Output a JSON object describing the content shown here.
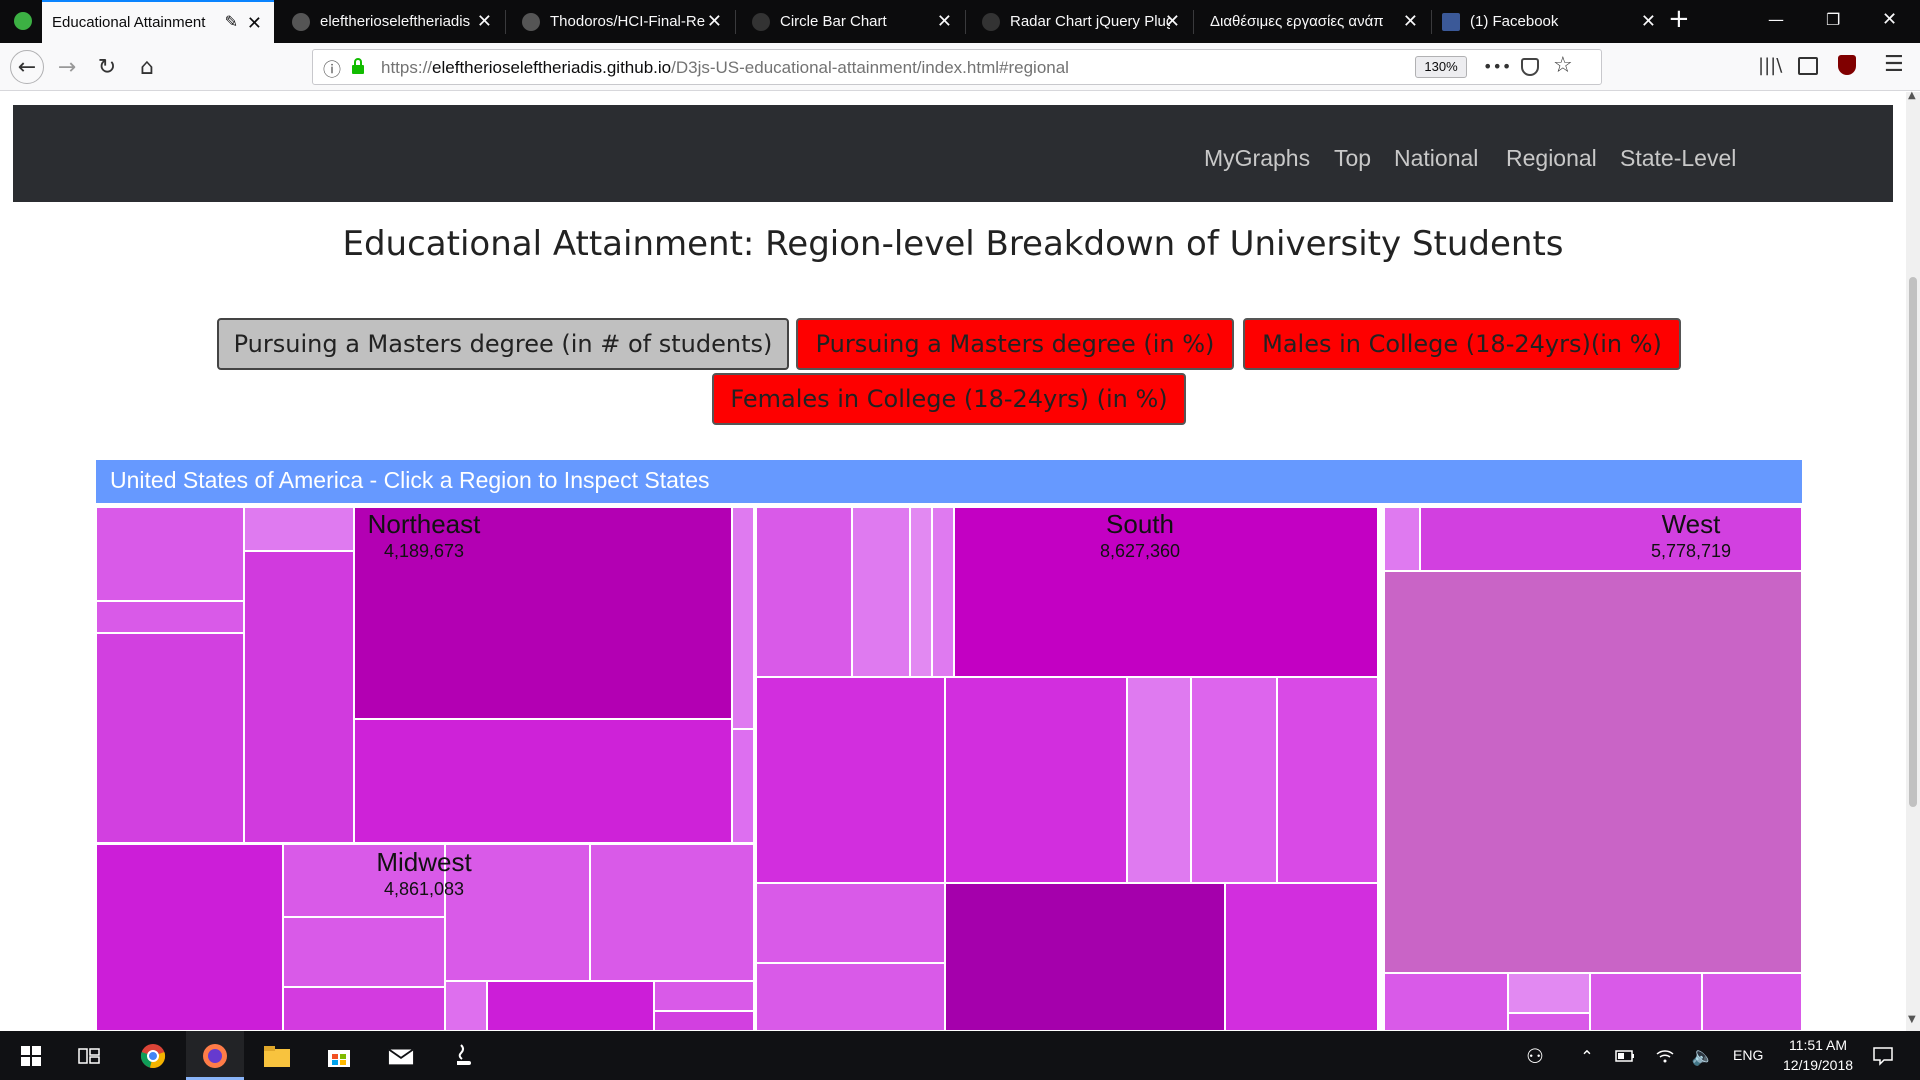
{
  "browser": {
    "tabs": [
      {
        "label": "Educational Attainment",
        "active": true
      },
      {
        "label": "eleftherioseleftheriadis",
        "active": false
      },
      {
        "label": "Thodoros/HCI-Final-Re",
        "active": false
      },
      {
        "label": "Circle Bar Chart",
        "active": false
      },
      {
        "label": "Radar Chart jQuery Plug",
        "active": false
      },
      {
        "label": "Διαθέσιμες εργασίες ανάπ",
        "active": false
      },
      {
        "label": "(1) Facebook",
        "active": false
      }
    ],
    "url_prefix": "https://",
    "url_host": "eleftherioseleftheriadis.github.io",
    "url_path": "/D3js-US-educational-attainment/index.html#regional",
    "zoom": "130%",
    "new_tab_glyph": "+",
    "close_glyph": "✕",
    "back_glyph": "←",
    "forward_glyph": "→",
    "reload_glyph": "↻",
    "home_glyph": "⌂",
    "info_glyph": "ⓘ",
    "more_glyph": "•••",
    "star_glyph": "☆",
    "minimize_glyph": "—",
    "restore_glyph": "❐",
    "window_close_glyph": "✕",
    "menu_glyph": "☰"
  },
  "site_nav": {
    "links": [
      "MyGraphs",
      "Top",
      "National",
      "Regional",
      "State-Level"
    ]
  },
  "page": {
    "title": "Educational Attainment: Region-level Breakdown of University Students",
    "buttons": [
      "Pursuing a Masters degree (in # of students)",
      "Pursuing a Masters degree (in %)",
      "Males in College (18-24yrs)(in %)",
      "Females in College (18-24yrs) (in %)"
    ],
    "map_header": "United States of America - Click a Region to Inspect States"
  },
  "regions": [
    {
      "name": "Northeast",
      "value": "4,189,673"
    },
    {
      "name": "South",
      "value": "8,627,360"
    },
    {
      "name": "West",
      "value": "5,778,719"
    },
    {
      "name": "Midwest",
      "value": "4,861,083"
    }
  ],
  "colors": {
    "header_blue": "#6699ff",
    "button_red": "#fe0000",
    "button_gray": "#c0c0c0",
    "nav_dark": "#2b2d31"
  },
  "taskbar": {
    "time": "11:51 AM",
    "date": "12/19/2018",
    "lang": "ENG"
  }
}
